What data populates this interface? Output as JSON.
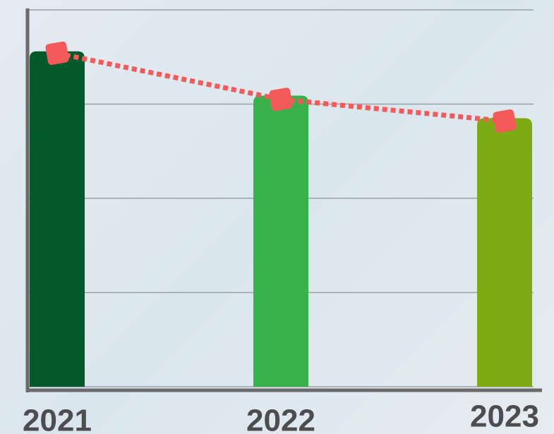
{
  "chart_data": {
    "type": "bar",
    "categories": [
      "2021",
      "2022",
      "2023"
    ],
    "series": [
      {
        "type": "bar",
        "colors": [
          "#03592b",
          "#37b24a",
          "#7dab13"
        ],
        "values": [
          3.56,
          3.09,
          2.85
        ]
      },
      {
        "type": "line",
        "color": "#f55a5a",
        "values": [
          3.54,
          3.05,
          2.82
        ]
      }
    ],
    "ylim": [
      0,
      4
    ],
    "yticks": [
      0,
      1,
      2,
      3,
      4
    ],
    "grid": true
  }
}
